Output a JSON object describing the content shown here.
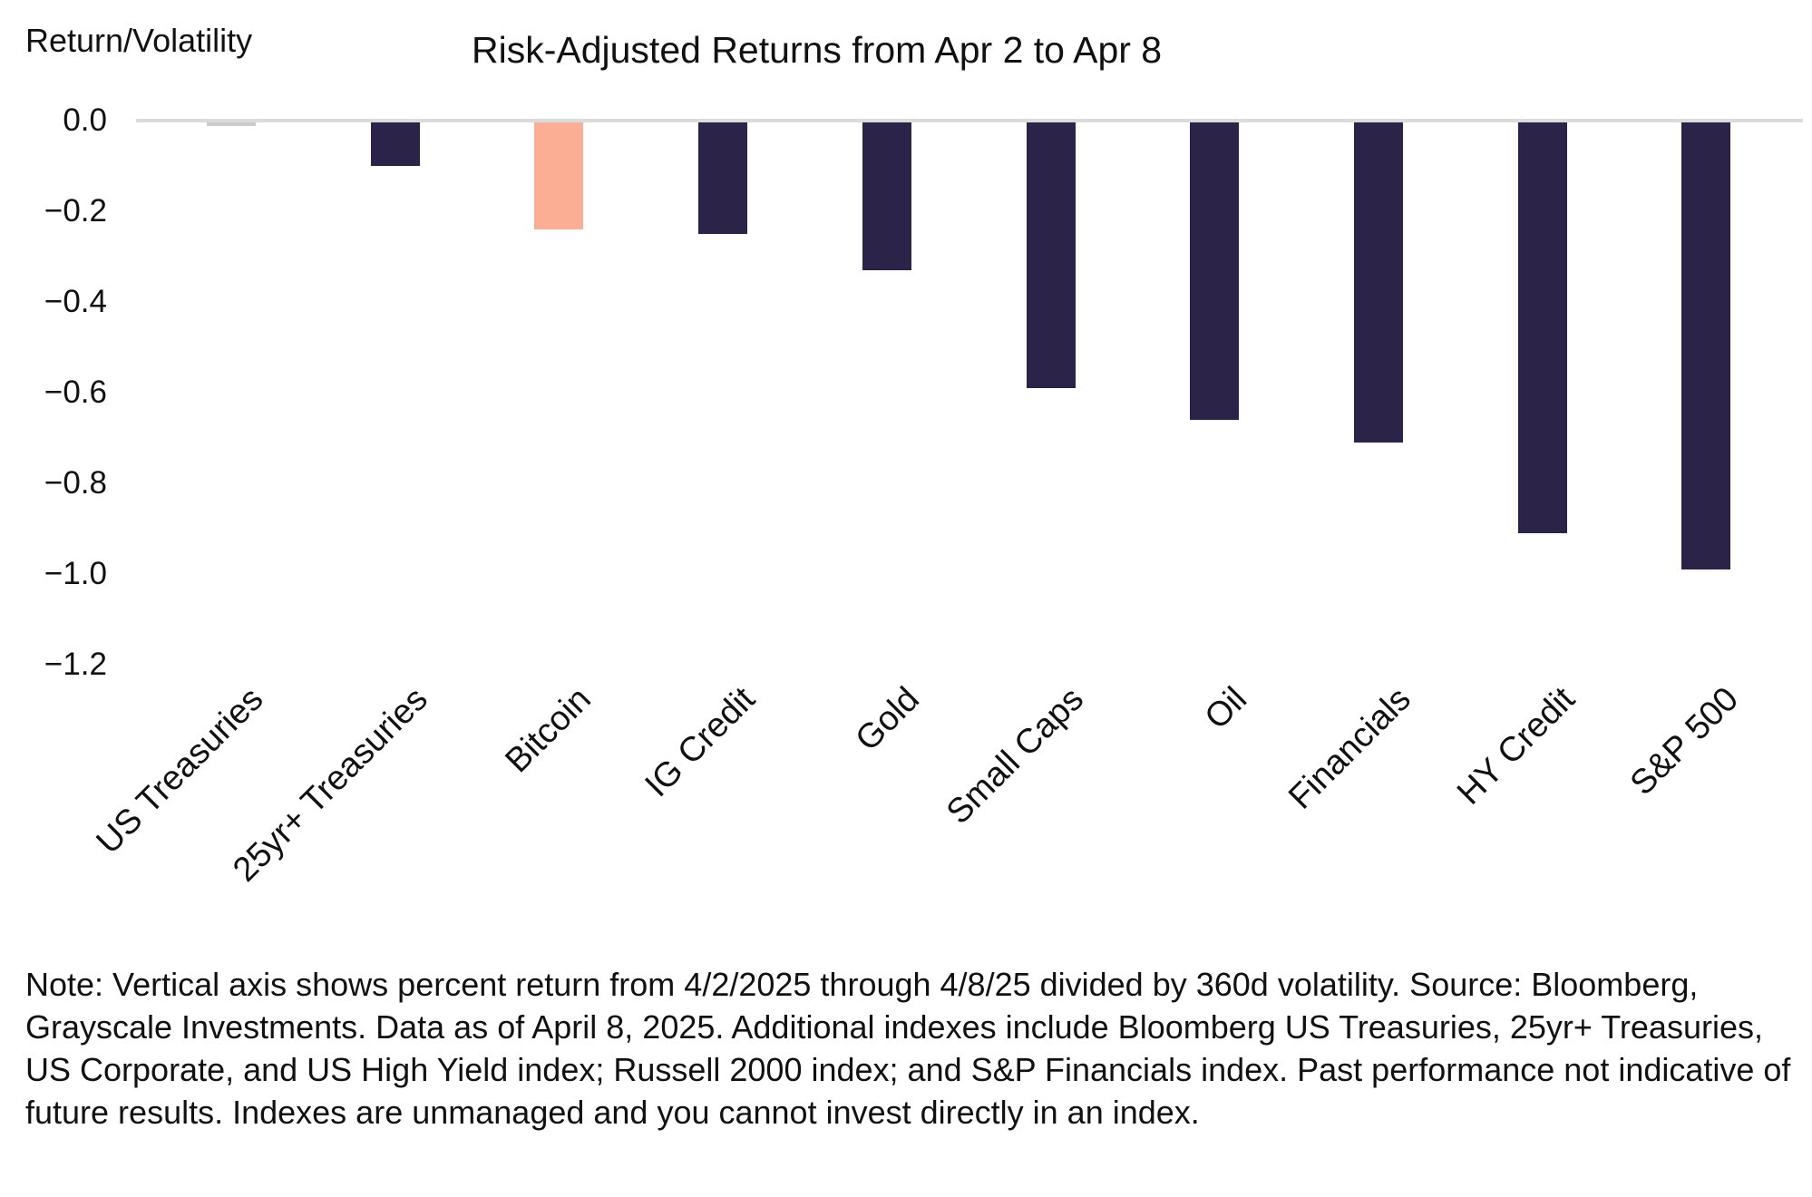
{
  "header": {
    "title": "Risk-Adjusted Returns from Apr 2 to Apr 8",
    "axis_unit_label": "Return/Volatility"
  },
  "chart_data": {
    "type": "bar",
    "title": "Risk-Adjusted Returns from Apr 2 to Apr 8",
    "ylabel": "Return/Volatility",
    "xlabel": "",
    "categories": [
      "US Treasuries",
      "25yr+ Treasuries",
      "Bitcoin",
      "IG Credit",
      "Gold",
      "Small Caps",
      "Oil",
      "Financials",
      "HY Credit",
      "S&P 500"
    ],
    "values": [
      -0.01,
      -0.1,
      -0.24,
      -0.25,
      -0.33,
      -0.59,
      -0.66,
      -0.71,
      -0.91,
      -0.99
    ],
    "ytick_labels": [
      "0.0",
      "−0.2",
      "−0.4",
      "−0.6",
      "−0.8",
      "−1.0",
      "−1.2"
    ],
    "ytick_values": [
      0.0,
      -0.2,
      -0.4,
      -0.6,
      -0.8,
      -1.0,
      -1.2
    ],
    "ylim": [
      -1.2,
      0.0
    ],
    "grid": false,
    "legend": "none",
    "bar_colors": [
      "#CBCBCB",
      "#2C2348",
      "#FBAE94",
      "#2C2348",
      "#2C2348",
      "#2C2348",
      "#2C2348",
      "#2C2348",
      "#2C2348",
      "#2C2348"
    ],
    "colors": {
      "bar_default": "#2C2348",
      "bar_highlight_bitcoin": "#FBAE94",
      "bar_near_zero": "#CBCBCB",
      "axis_line": "#DBDBDB",
      "text": "#111111"
    }
  },
  "note": "Note: Vertical axis shows percent return from 4/2/2025 through 4/8/25 divided by 360d volatility. Source: Bloomberg, Grayscale Investments. Data as of April 8, 2025. Additional indexes include Bloomberg US Treasuries, 25yr+ Treasuries, US Corporate, and US High Yield index; Russell 2000 index; and S&P Financials index. Past performance not indicative of future results. Indexes are unmanaged and you cannot invest directly in an index."
}
